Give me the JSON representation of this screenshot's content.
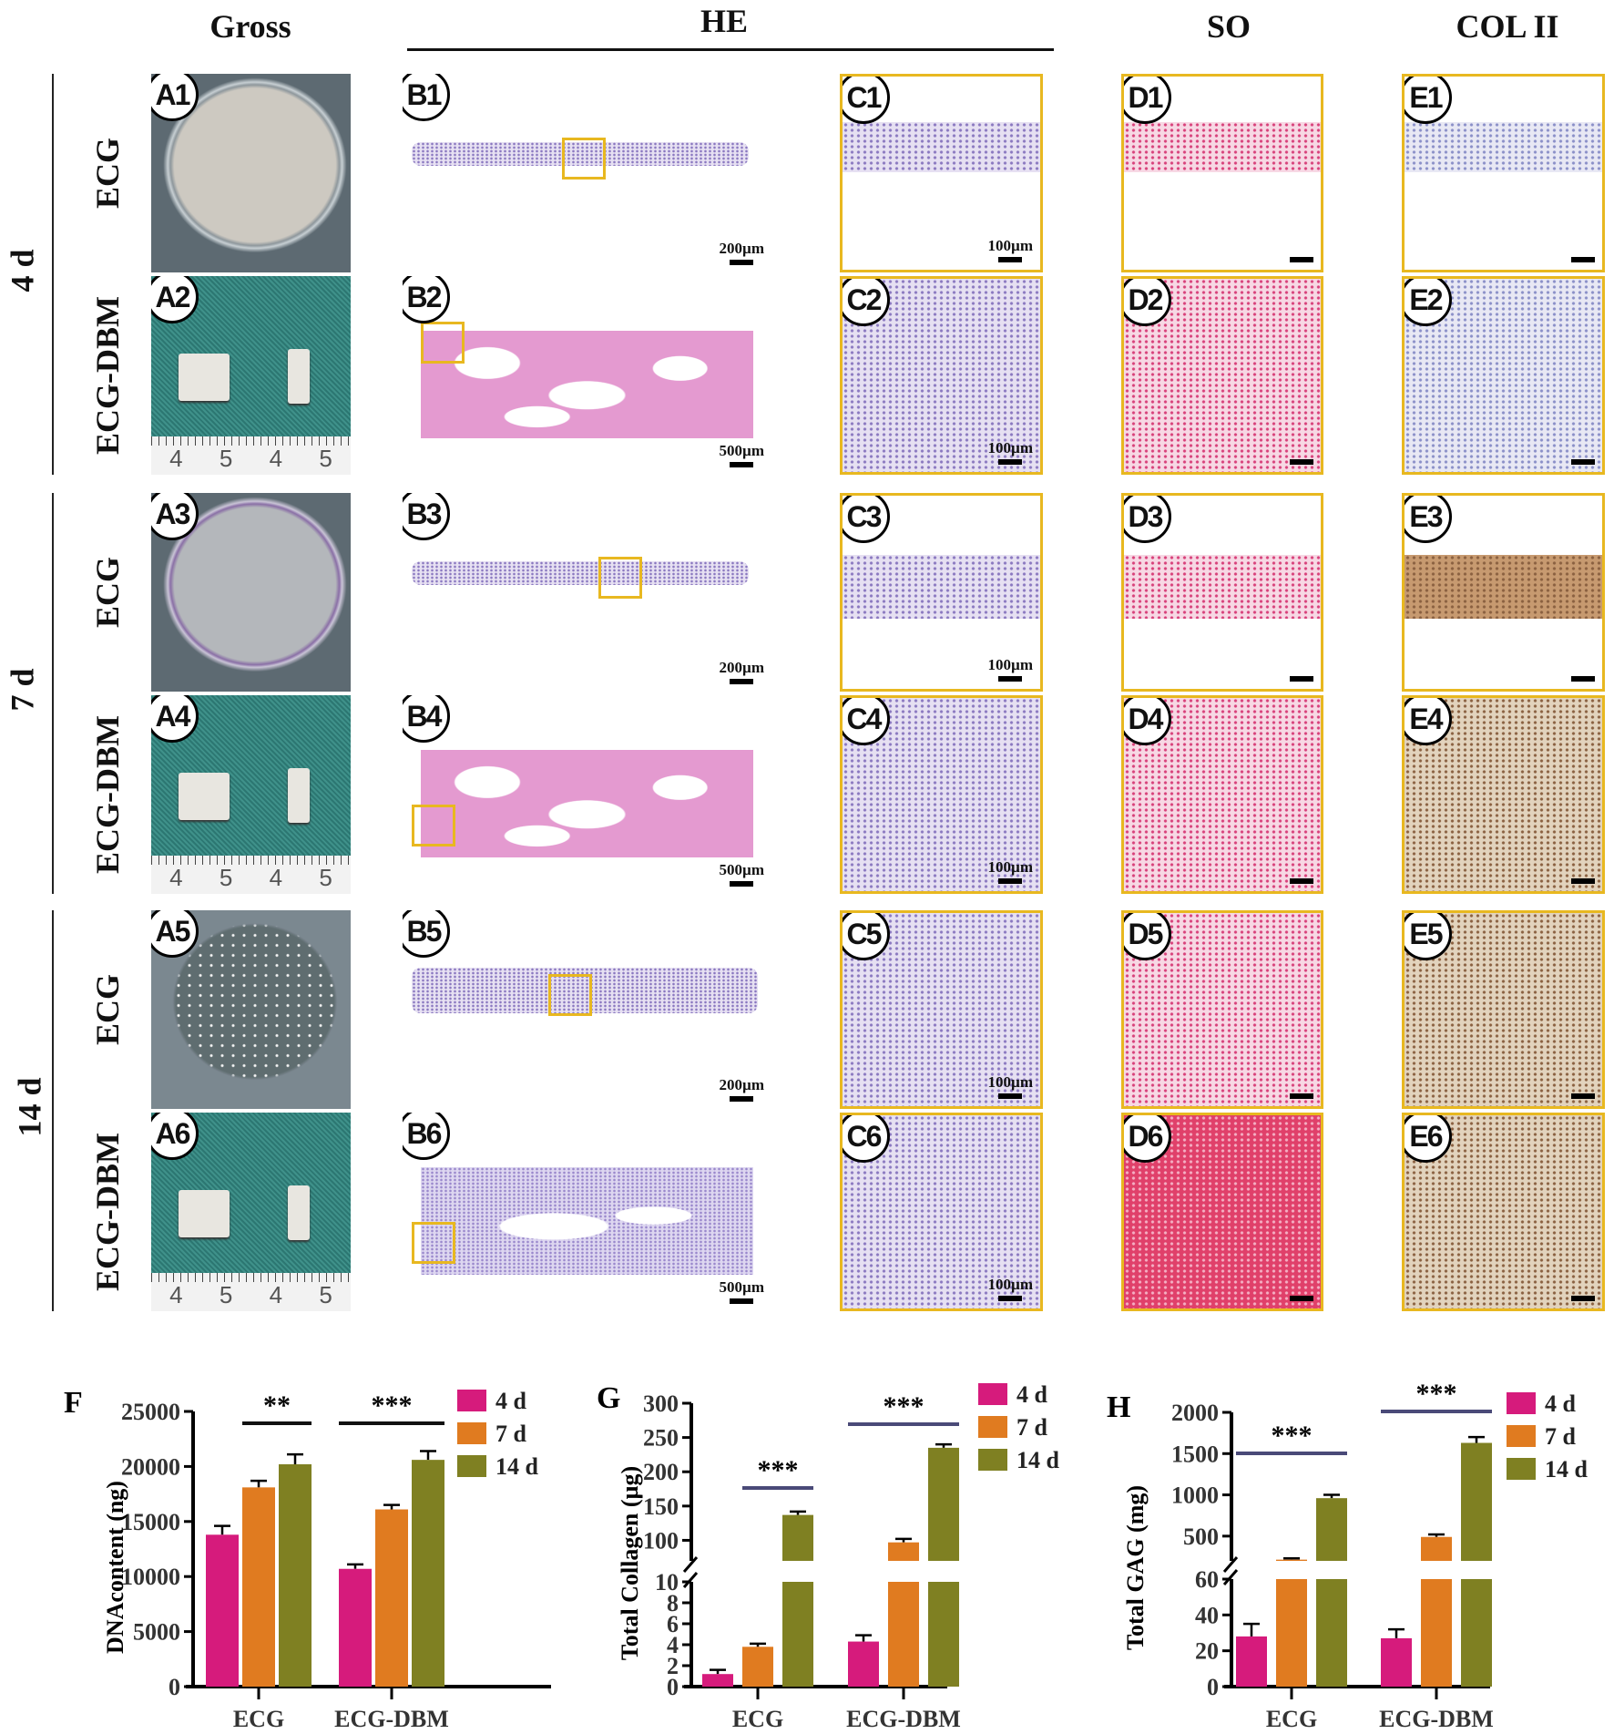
{
  "headers": {
    "gross": "Gross",
    "he": "HE",
    "so": "SO",
    "col2": "COL II"
  },
  "time_groups": [
    "4 d",
    "7 d",
    "14 d"
  ],
  "rows": [
    {
      "label": "ECG",
      "A": "A1",
      "B": "B1",
      "B_scale": "200µm",
      "C": "C1",
      "C_scale": "100µm",
      "D": "D1",
      "E": "E1"
    },
    {
      "label": "ECG-DBM",
      "A": "A2",
      "B": "B2",
      "B_scale": "500µm",
      "C": "C2",
      "C_scale": "100µm",
      "D": "D2",
      "E": "E2",
      "ruler": [
        "4",
        "5",
        "4",
        "5"
      ]
    },
    {
      "label": "ECG",
      "A": "A3",
      "B": "B3",
      "B_scale": "200µm",
      "C": "C3",
      "C_scale": "100µm",
      "D": "D3",
      "E": "E3"
    },
    {
      "label": "ECG-DBM",
      "A": "A4",
      "B": "B4",
      "B_scale": "500µm",
      "C": "C4",
      "C_scale": "100µm",
      "D": "D4",
      "E": "E4",
      "ruler": [
        "4",
        "5",
        "4",
        "5"
      ]
    },
    {
      "label": "ECG",
      "A": "A5",
      "B": "B5",
      "B_scale": "200µm",
      "C": "C5",
      "C_scale": "100µm",
      "D": "D5",
      "E": "E5"
    },
    {
      "label": "ECG-DBM",
      "A": "A6",
      "B": "B6",
      "B_scale": "500µm",
      "C": "C6",
      "C_scale": "100µm",
      "D": "D6",
      "E": "E6",
      "ruler": [
        "4",
        "5",
        "4",
        "5"
      ]
    }
  ],
  "colors": {
    "4 d": "#d61b7c",
    "7 d": "#e07b20",
    "14 d": "#7f8022",
    "sig_dark": "#111111",
    "sig_blue": "#4a4a78",
    "frame": "#e8b820"
  },
  "chart_data": [
    {
      "panel": "F",
      "type": "bar",
      "ylabel": "DNAcontent (ng)",
      "categories": [
        "ECG",
        "ECG-DBM"
      ],
      "yticks": [
        0,
        5000,
        10000,
        15000,
        20000,
        25000
      ],
      "ylim": [
        0,
        25000
      ],
      "legend": "top-right",
      "series": [
        {
          "name": "4 d",
          "values": [
            13800,
            10700
          ],
          "errors": [
            800,
            400
          ]
        },
        {
          "name": "7 d",
          "values": [
            18100,
            16100
          ],
          "errors": [
            600,
            400
          ]
        },
        {
          "name": "14 d",
          "values": [
            20200,
            20600
          ],
          "errors": [
            900,
            800
          ]
        }
      ],
      "significance": [
        {
          "group": "ECG",
          "from": "7 d",
          "to": "14 d",
          "label": "**"
        },
        {
          "group": "ECG-DBM",
          "from": "4 d",
          "to": "14 d",
          "label": "***"
        }
      ]
    },
    {
      "panel": "G",
      "type": "bar",
      "ylabel": "Total Collagen (µg)",
      "categories": [
        "ECG",
        "ECG-DBM"
      ],
      "yticks_lower": [
        0,
        2,
        4,
        6,
        8,
        10
      ],
      "yticks_upper": [
        100,
        150,
        200,
        250,
        300
      ],
      "ylim_lower": [
        0,
        10
      ],
      "ylim_upper": [
        70,
        300
      ],
      "legend": "top-right",
      "series": [
        {
          "name": "4 d",
          "values": [
            1.2,
            4.3
          ],
          "errors": [
            0.4,
            0.6
          ]
        },
        {
          "name": "7 d",
          "values": [
            3.8,
            97
          ],
          "errors": [
            0.3,
            5
          ]
        },
        {
          "name": "14 d",
          "values": [
            137,
            235
          ],
          "errors": [
            5,
            5
          ]
        }
      ],
      "significance": [
        {
          "group": "ECG",
          "from": "7 d",
          "to": "14 d",
          "label": "***"
        },
        {
          "group": "ECG-DBM",
          "from": "4 d",
          "to": "14 d",
          "label": "***"
        }
      ]
    },
    {
      "panel": "H",
      "type": "bar",
      "ylabel": "Total GAG (mg)",
      "categories": [
        "ECG",
        "ECG-DBM"
      ],
      "yticks_lower": [
        0,
        20,
        40,
        60
      ],
      "yticks_upper": [
        500,
        1000,
        1500,
        2000
      ],
      "ylim_lower": [
        0,
        60
      ],
      "ylim_upper": [
        200,
        2000
      ],
      "legend": "top-right",
      "series": [
        {
          "name": "4 d",
          "values": [
            28,
            27
          ],
          "errors": [
            7,
            5
          ]
        },
        {
          "name": "7 d",
          "values": [
            215,
            490
          ],
          "errors": [
            15,
            30
          ]
        },
        {
          "name": "14 d",
          "values": [
            960,
            1630
          ],
          "errors": [
            40,
            70
          ]
        }
      ],
      "significance": [
        {
          "group": "ECG",
          "from": "4 d",
          "to": "14 d",
          "label": "***"
        },
        {
          "group": "ECG-DBM",
          "from": "4 d",
          "to": "14 d",
          "label": "***"
        }
      ]
    }
  ]
}
